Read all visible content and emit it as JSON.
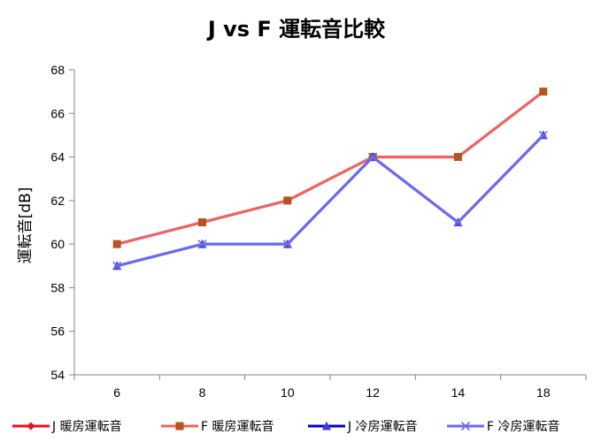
{
  "chart_data": {
    "type": "line",
    "title": "J vs F 運転音比較",
    "xlabel": "",
    "ylabel": "運転音[dB]",
    "categories": [
      "6",
      "8",
      "10",
      "12",
      "14",
      "18"
    ],
    "ylim": [
      54,
      68
    ],
    "ytick_step": 2,
    "grid": false,
    "legend_position": "bottom",
    "series": [
      {
        "name": "J 暖房運転音",
        "values": [
          60,
          61,
          62,
          64,
          64,
          67
        ],
        "color": "#E8101A",
        "marker": "diamond"
      },
      {
        "name": "F 暖房運転音",
        "values": [
          60,
          61,
          62,
          64,
          64,
          67
        ],
        "color": "#EF6363",
        "marker": "square",
        "marker_color": "#B5541E"
      },
      {
        "name": "J 冷房運転音",
        "values": [
          59,
          60,
          60,
          64,
          61,
          65
        ],
        "color": "#0000C8",
        "marker": "triangle",
        "marker_color": "#3F3FCF"
      },
      {
        "name": "F 冷房運転音",
        "values": [
          59,
          60,
          60,
          64,
          61,
          65
        ],
        "color": "#6A6AF2",
        "marker": "x"
      }
    ]
  }
}
